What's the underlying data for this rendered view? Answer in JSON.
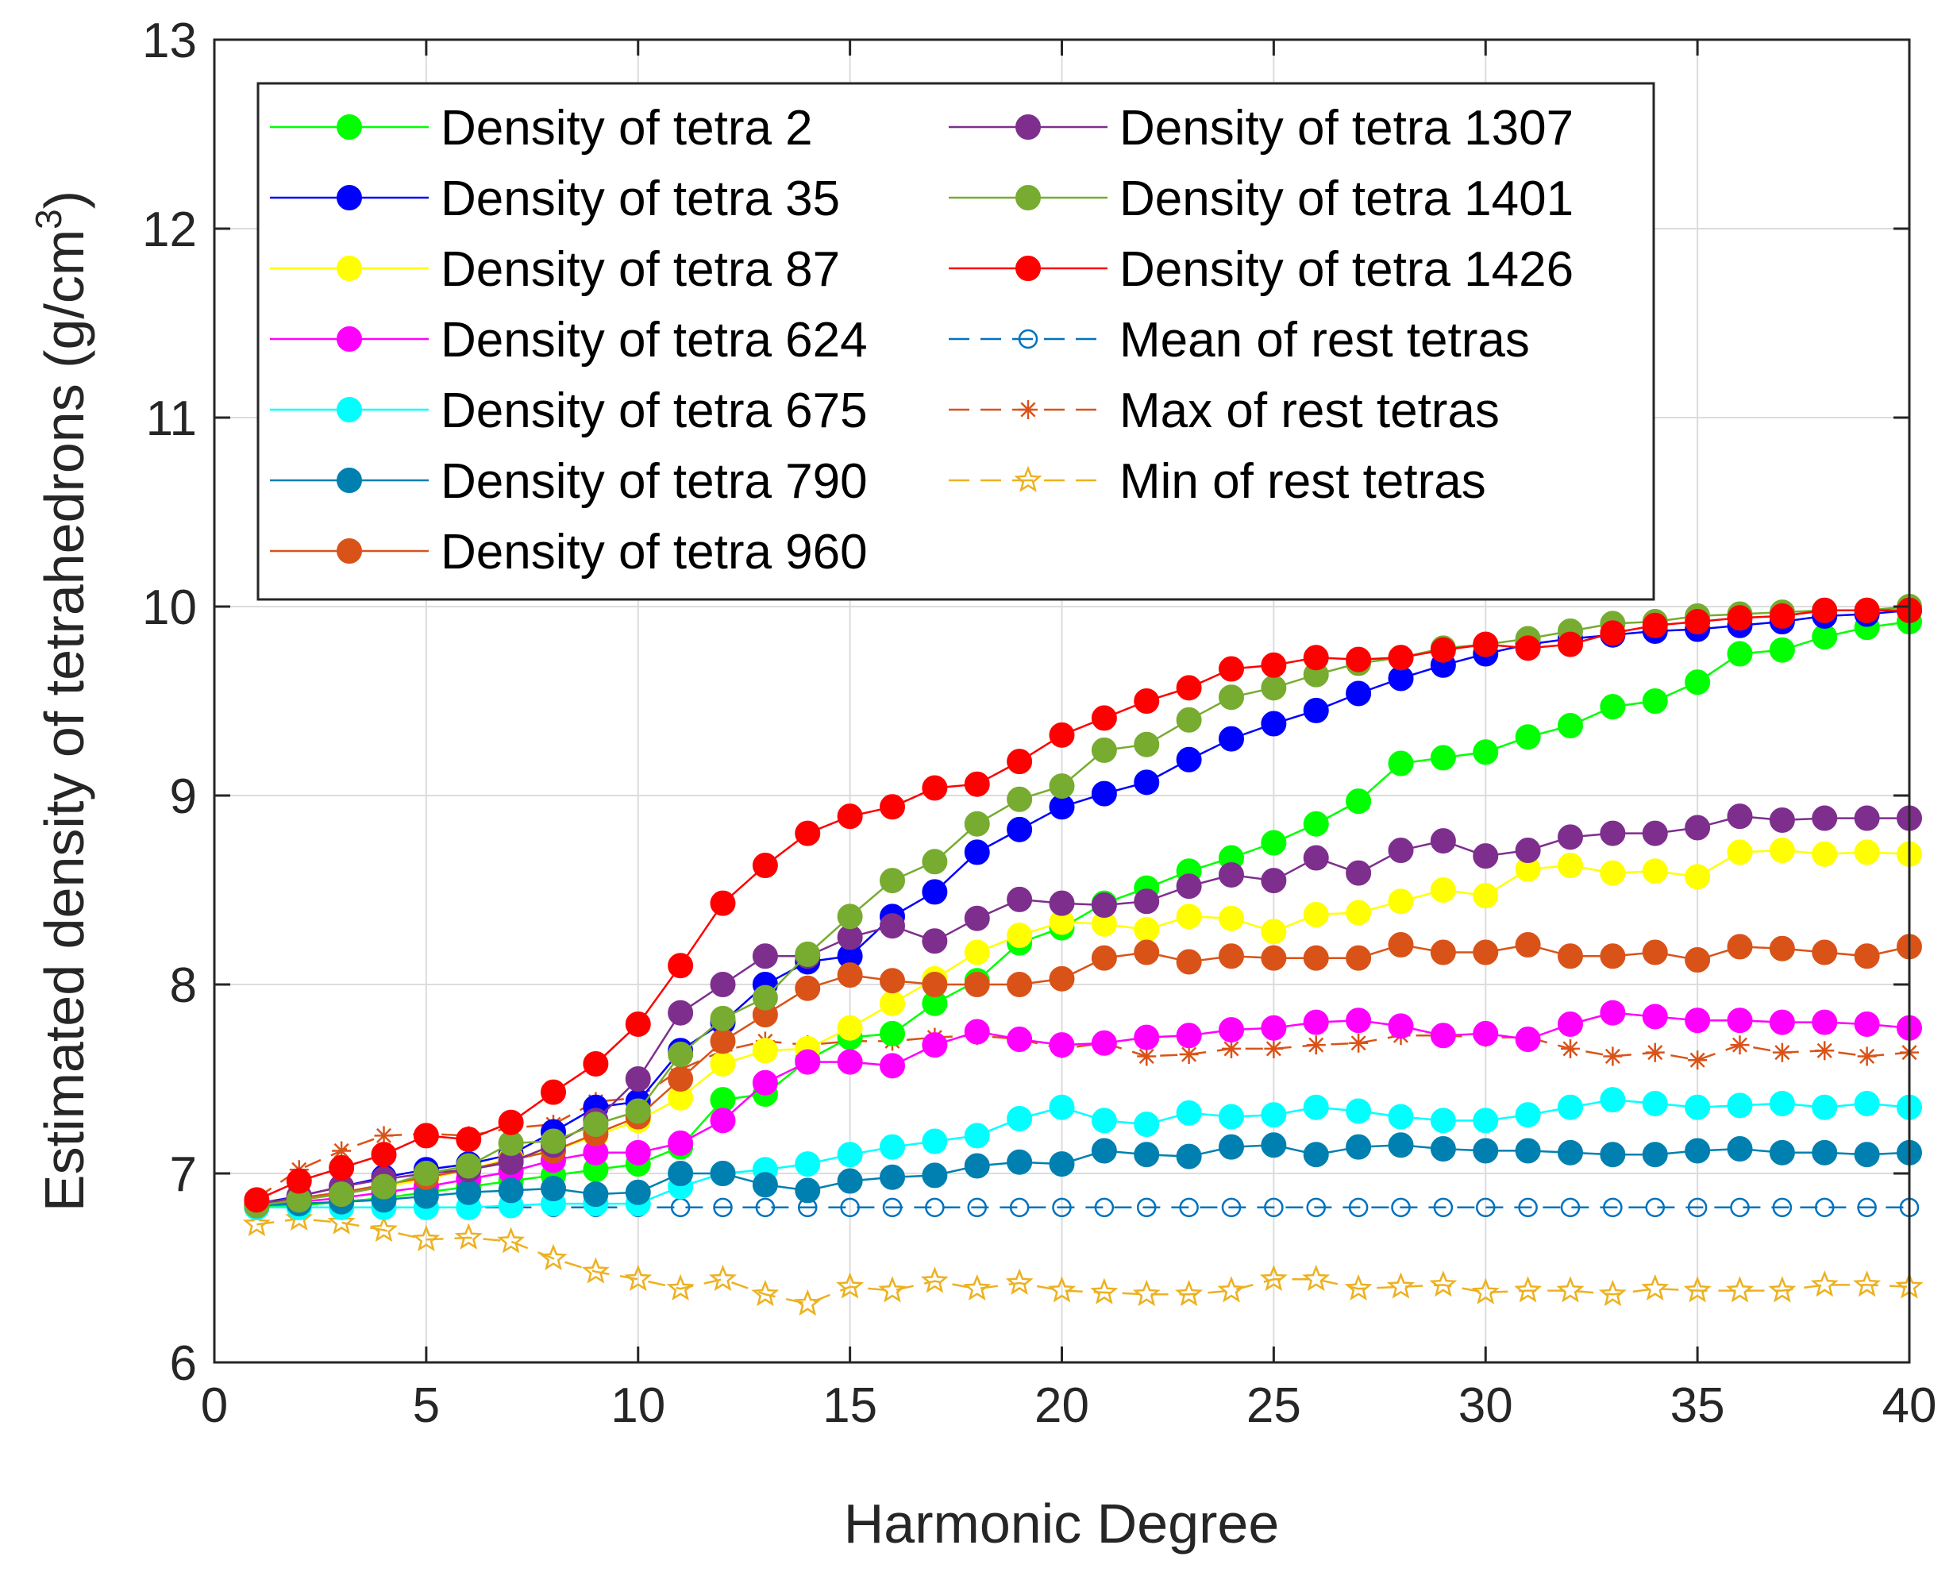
{
  "chart_data": {
    "type": "line",
    "title": "",
    "xlabel": "Harmonic Degree",
    "ylabel": "Estimated density of tetrahedrons (g/cm",
    "ylabel_superscript": "3",
    "ylabel_suffix": ")",
    "xlim": [
      0,
      40
    ],
    "ylim": [
      6,
      13
    ],
    "xticks": [
      0,
      5,
      10,
      15,
      20,
      25,
      30,
      35,
      40
    ],
    "yticks": [
      6,
      7,
      8,
      9,
      10,
      11,
      12,
      13
    ],
    "grid": true,
    "legend_position": "top-left",
    "x": [
      1,
      2,
      3,
      4,
      5,
      6,
      7,
      8,
      9,
      10,
      11,
      12,
      13,
      14,
      15,
      16,
      17,
      18,
      19,
      20,
      21,
      22,
      23,
      24,
      25,
      26,
      27,
      28,
      29,
      30,
      31,
      32,
      33,
      34,
      35,
      36,
      37,
      38,
      39,
      40
    ],
    "series": [
      {
        "name": "Density of tetra 2",
        "color": "#00ff00",
        "marker": "dot",
        "dash": "solid",
        "values": [
          6.82,
          6.83,
          6.85,
          6.87,
          6.9,
          6.93,
          6.96,
          6.99,
          7.02,
          7.05,
          7.14,
          7.39,
          7.42,
          7.6,
          7.72,
          7.74,
          7.9,
          8.02,
          8.22,
          8.3,
          8.43,
          8.51,
          8.6,
          8.67,
          8.75,
          8.85,
          8.97,
          9.17,
          9.2,
          9.23,
          9.31,
          9.37,
          9.47,
          9.5,
          9.6,
          9.75,
          9.77,
          9.84,
          9.89,
          9.92
        ]
      },
      {
        "name": "Density of tetra 35",
        "color": "#0000ff",
        "marker": "dot",
        "dash": "solid",
        "values": [
          6.84,
          6.88,
          6.93,
          6.98,
          7.02,
          7.05,
          7.1,
          7.22,
          7.35,
          7.38,
          7.65,
          7.8,
          8.0,
          8.12,
          8.15,
          8.36,
          8.49,
          8.7,
          8.82,
          8.94,
          9.01,
          9.07,
          9.19,
          9.3,
          9.38,
          9.45,
          9.54,
          9.62,
          9.69,
          9.75,
          9.8,
          9.83,
          9.85,
          9.87,
          9.88,
          9.9,
          9.92,
          9.95,
          9.96,
          9.98
        ]
      },
      {
        "name": "Density of tetra 87",
        "color": "#ffff00",
        "marker": "dot",
        "dash": "solid",
        "values": [
          6.83,
          6.86,
          6.89,
          6.93,
          6.97,
          7.02,
          7.08,
          7.12,
          7.2,
          7.28,
          7.4,
          7.58,
          7.65,
          7.66,
          7.77,
          7.9,
          8.03,
          8.17,
          8.26,
          8.33,
          8.32,
          8.29,
          8.36,
          8.35,
          8.28,
          8.37,
          8.38,
          8.44,
          8.5,
          8.47,
          8.61,
          8.63,
          8.59,
          8.6,
          8.57,
          8.7,
          8.71,
          8.69,
          8.7,
          8.69
        ]
      },
      {
        "name": "Density of tetra 624",
        "color": "#ff00ff",
        "marker": "dot",
        "dash": "solid",
        "values": [
          6.83,
          6.85,
          6.87,
          6.9,
          6.93,
          6.97,
          7.01,
          7.07,
          7.11,
          7.11,
          7.16,
          7.28,
          7.48,
          7.59,
          7.59,
          7.57,
          7.68,
          7.75,
          7.71,
          7.68,
          7.69,
          7.72,
          7.73,
          7.76,
          7.77,
          7.8,
          7.81,
          7.78,
          7.73,
          7.74,
          7.71,
          7.79,
          7.85,
          7.83,
          7.81,
          7.81,
          7.8,
          7.8,
          7.79,
          7.77
        ]
      },
      {
        "name": "Density of tetra 675",
        "color": "#00ffff",
        "marker": "dot",
        "dash": "solid",
        "values": [
          6.82,
          6.82,
          6.82,
          6.82,
          6.82,
          6.82,
          6.83,
          6.84,
          6.84,
          6.84,
          6.93,
          7.0,
          7.02,
          7.05,
          7.1,
          7.14,
          7.17,
          7.2,
          7.29,
          7.35,
          7.28,
          7.26,
          7.32,
          7.3,
          7.31,
          7.35,
          7.33,
          7.3,
          7.28,
          7.28,
          7.31,
          7.35,
          7.39,
          7.37,
          7.35,
          7.36,
          7.37,
          7.35,
          7.37,
          7.35
        ]
      },
      {
        "name": "Density of tetra 790",
        "color": "#0080b0",
        "marker": "dot",
        "dash": "solid",
        "values": [
          6.83,
          6.84,
          6.85,
          6.86,
          6.88,
          6.9,
          6.91,
          6.92,
          6.89,
          6.9,
          7.0,
          7.0,
          6.94,
          6.91,
          6.96,
          6.98,
          6.99,
          7.04,
          7.06,
          7.05,
          7.12,
          7.1,
          7.09,
          7.14,
          7.15,
          7.1,
          7.14,
          7.15,
          7.13,
          7.12,
          7.12,
          7.11,
          7.1,
          7.1,
          7.12,
          7.13,
          7.11,
          7.11,
          7.1,
          7.11
        ]
      },
      {
        "name": "Density of tetra 960",
        "color": "#d95319",
        "marker": "dot",
        "dash": "solid",
        "values": [
          6.84,
          6.87,
          6.9,
          6.94,
          6.98,
          7.02,
          7.07,
          7.12,
          7.21,
          7.3,
          7.5,
          7.7,
          7.84,
          7.98,
          8.05,
          8.02,
          8.0,
          8.0,
          8.0,
          8.03,
          8.14,
          8.17,
          8.12,
          8.15,
          8.14,
          8.14,
          8.14,
          8.21,
          8.17,
          8.17,
          8.21,
          8.15,
          8.15,
          8.17,
          8.13,
          8.2,
          8.19,
          8.17,
          8.15,
          8.2
        ]
      },
      {
        "name": "Density of tetra 1307",
        "color": "#7e2f8e",
        "marker": "dot",
        "dash": "solid",
        "values": [
          6.83,
          6.88,
          6.93,
          6.97,
          7.0,
          7.02,
          7.06,
          7.15,
          7.28,
          7.5,
          7.85,
          8.0,
          8.15,
          8.15,
          8.25,
          8.31,
          8.23,
          8.35,
          8.45,
          8.43,
          8.42,
          8.44,
          8.52,
          8.58,
          8.55,
          8.67,
          8.59,
          8.71,
          8.76,
          8.68,
          8.71,
          8.78,
          8.8,
          8.8,
          8.83,
          8.89,
          8.87,
          8.88,
          8.88,
          8.88
        ]
      },
      {
        "name": "Density of tetra 1401",
        "color": "#77ac30",
        "marker": "dot",
        "dash": "solid",
        "values": [
          6.83,
          6.86,
          6.89,
          6.93,
          7.0,
          7.04,
          7.16,
          7.17,
          7.26,
          7.33,
          7.63,
          7.82,
          7.93,
          8.16,
          8.36,
          8.55,
          8.65,
          8.85,
          8.98,
          9.05,
          9.24,
          9.27,
          9.4,
          9.52,
          9.57,
          9.64,
          9.7,
          9.73,
          9.78,
          9.8,
          9.83,
          9.87,
          9.91,
          9.92,
          9.95,
          9.96,
          9.97,
          9.98,
          9.98,
          10.0
        ]
      },
      {
        "name": "Density of tetra 1426",
        "color": "#ff0000",
        "marker": "dot",
        "dash": "solid",
        "values": [
          6.86,
          6.96,
          7.03,
          7.1,
          7.2,
          7.18,
          7.27,
          7.43,
          7.58,
          7.79,
          8.1,
          8.43,
          8.63,
          8.8,
          8.89,
          8.94,
          9.04,
          9.06,
          9.18,
          9.32,
          9.41,
          9.5,
          9.57,
          9.67,
          9.69,
          9.73,
          9.72,
          9.73,
          9.77,
          9.8,
          9.78,
          9.8,
          9.86,
          9.9,
          9.92,
          9.94,
          9.95,
          9.98,
          9.98,
          9.98
        ]
      },
      {
        "name": "Mean of rest tetras",
        "color": "#0072bd",
        "marker": "circle",
        "dash": "dashed",
        "values": [
          6.82,
          6.82,
          6.82,
          6.82,
          6.82,
          6.82,
          6.82,
          6.82,
          6.82,
          6.82,
          6.82,
          6.82,
          6.82,
          6.82,
          6.82,
          6.82,
          6.82,
          6.82,
          6.82,
          6.82,
          6.82,
          6.82,
          6.82,
          6.82,
          6.82,
          6.82,
          6.82,
          6.82,
          6.82,
          6.82,
          6.82,
          6.82,
          6.82,
          6.82,
          6.82,
          6.82,
          6.82,
          6.82,
          6.82,
          6.82
        ]
      },
      {
        "name": "Max of rest tetras",
        "color": "#d95319",
        "marker": "asterisk",
        "dash": "dashed",
        "values": [
          6.87,
          7.02,
          7.12,
          7.2,
          7.21,
          7.2,
          7.24,
          7.26,
          7.38,
          7.4,
          7.55,
          7.65,
          7.7,
          7.68,
          7.7,
          7.7,
          7.72,
          7.73,
          7.71,
          7.66,
          7.69,
          7.62,
          7.63,
          7.66,
          7.66,
          7.68,
          7.69,
          7.73,
          7.73,
          7.72,
          7.72,
          7.66,
          7.62,
          7.64,
          7.6,
          7.68,
          7.64,
          7.65,
          7.62,
          7.64
        ]
      },
      {
        "name": "Min of rest tetras",
        "color": "#edb120",
        "marker": "star",
        "dash": "dashed",
        "values": [
          6.73,
          6.76,
          6.74,
          6.7,
          6.65,
          6.66,
          6.64,
          6.55,
          6.48,
          6.44,
          6.39,
          6.44,
          6.36,
          6.31,
          6.4,
          6.38,
          6.43,
          6.39,
          6.42,
          6.38,
          6.37,
          6.36,
          6.36,
          6.38,
          6.44,
          6.44,
          6.39,
          6.4,
          6.41,
          6.37,
          6.38,
          6.38,
          6.36,
          6.39,
          6.38,
          6.38,
          6.38,
          6.41,
          6.41,
          6.4
        ]
      }
    ]
  }
}
